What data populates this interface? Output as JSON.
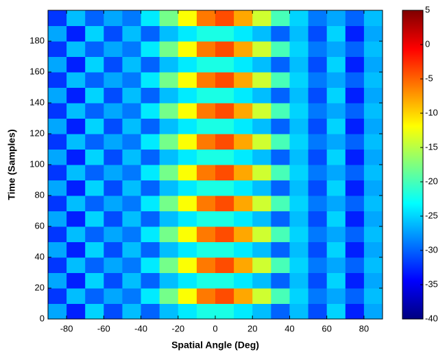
{
  "chart_data": {
    "type": "heatmap",
    "xlabel": "Spatial Angle (Deg)",
    "ylabel": "Time (Samples)",
    "x": [
      -85,
      -75,
      -65,
      -55,
      -45,
      -35,
      -25,
      -15,
      -5,
      5,
      15,
      25,
      35,
      45,
      55,
      65,
      75,
      85
    ],
    "y": [
      5,
      15,
      25,
      35,
      45,
      55,
      65,
      75,
      85,
      95,
      105,
      115,
      125,
      135,
      145,
      155,
      165,
      175,
      185,
      195
    ],
    "z": [
      [
        -27,
        -33,
        -25,
        -31,
        -26,
        -30,
        -26,
        -24,
        -22,
        -22,
        -24,
        -26,
        -30,
        -26,
        -31,
        -25,
        -33,
        -27
      ],
      [
        -32,
        -26,
        -30,
        -27,
        -29,
        -24,
        -18,
        -12,
        -6,
        -4,
        -8,
        -14,
        -20,
        -25,
        -29,
        -27,
        -30,
        -26
      ],
      [
        -27,
        -33,
        -25,
        -31,
        -26,
        -30,
        -26,
        -24,
        -22,
        -22,
        -24,
        -26,
        -30,
        -26,
        -31,
        -25,
        -33,
        -27
      ],
      [
        -32,
        -26,
        -30,
        -27,
        -29,
        -24,
        -18,
        -12,
        -6,
        -4,
        -8,
        -14,
        -20,
        -25,
        -29,
        -27,
        -30,
        -26
      ],
      [
        -27,
        -33,
        -25,
        -31,
        -26,
        -30,
        -26,
        -24,
        -22,
        -22,
        -24,
        -26,
        -30,
        -26,
        -31,
        -25,
        -33,
        -27
      ],
      [
        -32,
        -26,
        -30,
        -27,
        -29,
        -24,
        -18,
        -12,
        -6,
        -4,
        -8,
        -14,
        -20,
        -25,
        -29,
        -27,
        -30,
        -26
      ],
      [
        -27,
        -33,
        -25,
        -31,
        -26,
        -30,
        -26,
        -24,
        -22,
        -22,
        -24,
        -26,
        -30,
        -26,
        -31,
        -25,
        -33,
        -27
      ],
      [
        -32,
        -26,
        -30,
        -27,
        -29,
        -24,
        -18,
        -12,
        -6,
        -4,
        -8,
        -14,
        -20,
        -25,
        -29,
        -27,
        -30,
        -26
      ],
      [
        -27,
        -33,
        -25,
        -31,
        -26,
        -30,
        -26,
        -24,
        -22,
        -22,
        -24,
        -26,
        -30,
        -26,
        -31,
        -25,
        -33,
        -27
      ],
      [
        -32,
        -26,
        -30,
        -27,
        -29,
        -24,
        -18,
        -12,
        -6,
        -4,
        -8,
        -14,
        -20,
        -25,
        -29,
        -27,
        -30,
        -26
      ],
      [
        -27,
        -33,
        -25,
        -31,
        -26,
        -30,
        -26,
        -24,
        -22,
        -22,
        -24,
        -26,
        -30,
        -26,
        -31,
        -25,
        -33,
        -27
      ],
      [
        -32,
        -26,
        -30,
        -27,
        -29,
        -24,
        -18,
        -12,
        -6,
        -4,
        -8,
        -14,
        -20,
        -25,
        -29,
        -27,
        -30,
        -26
      ],
      [
        -27,
        -33,
        -25,
        -31,
        -26,
        -30,
        -26,
        -24,
        -22,
        -22,
        -24,
        -26,
        -30,
        -26,
        -31,
        -25,
        -33,
        -27
      ],
      [
        -32,
        -26,
        -30,
        -27,
        -29,
        -24,
        -18,
        -12,
        -6,
        -4,
        -8,
        -14,
        -20,
        -25,
        -29,
        -27,
        -30,
        -26
      ],
      [
        -27,
        -33,
        -25,
        -31,
        -26,
        -30,
        -26,
        -24,
        -22,
        -22,
        -24,
        -26,
        -30,
        -26,
        -31,
        -25,
        -33,
        -27
      ],
      [
        -32,
        -26,
        -30,
        -27,
        -29,
        -24,
        -18,
        -12,
        -6,
        -4,
        -8,
        -14,
        -20,
        -25,
        -29,
        -27,
        -30,
        -26
      ],
      [
        -27,
        -33,
        -25,
        -31,
        -26,
        -30,
        -26,
        -24,
        -22,
        -22,
        -24,
        -26,
        -30,
        -26,
        -31,
        -25,
        -33,
        -27
      ],
      [
        -32,
        -26,
        -30,
        -27,
        -29,
        -24,
        -18,
        -12,
        -6,
        -4,
        -8,
        -14,
        -20,
        -25,
        -29,
        -27,
        -30,
        -26
      ],
      [
        -27,
        -33,
        -25,
        -31,
        -26,
        -30,
        -26,
        -24,
        -22,
        -22,
        -24,
        -26,
        -30,
        -26,
        -31,
        -25,
        -33,
        -27
      ],
      [
        -32,
        -26,
        -30,
        -27,
        -29,
        -24,
        -18,
        -12,
        -6,
        -4,
        -8,
        -14,
        -20,
        -25,
        -29,
        -27,
        -30,
        -26
      ]
    ],
    "xlim": [
      -90,
      90
    ],
    "xticks": [
      -80,
      -60,
      -40,
      -20,
      0,
      20,
      40,
      60,
      80
    ],
    "ylim": [
      0,
      200
    ],
    "yticks": [
      0,
      20,
      40,
      60,
      80,
      100,
      120,
      140,
      160,
      180
    ],
    "clim": [
      -40,
      5
    ],
    "cticks": [
      -40,
      -35,
      -30,
      -25,
      -20,
      -15,
      -10,
      -5,
      0,
      5
    ],
    "colorscale": [
      "#00007f",
      "#0000ff",
      "#007fff",
      "#00ffff",
      "#7fff7f",
      "#ffff00",
      "#ff7f00",
      "#ff0000",
      "#7f0000"
    ]
  }
}
